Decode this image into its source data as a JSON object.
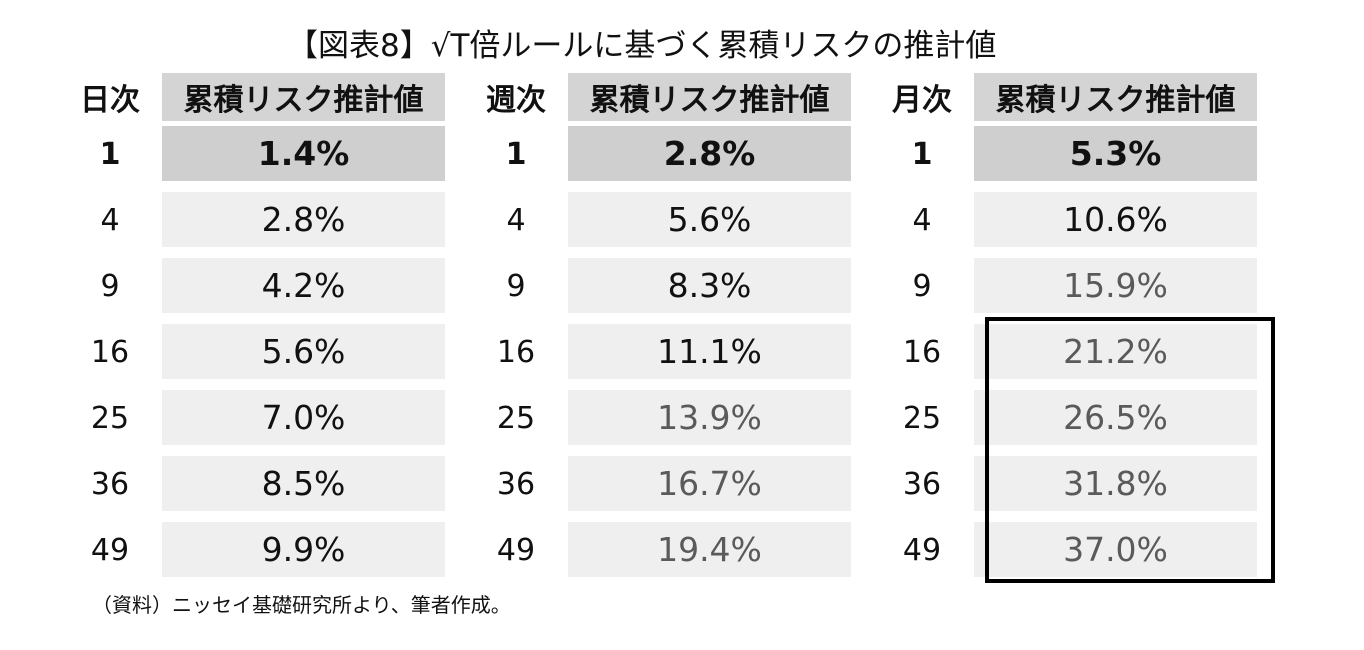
{
  "title": "【図表8】√T倍ルールに基づく累積リスクの推計値",
  "source": "（資料）ニッセイ基礎研究所より、筆者作成。",
  "chart_data": {
    "type": "table",
    "tables": [
      {
        "period_header": "日次",
        "value_header": "累積リスク推計値",
        "periods": [
          "1",
          "4",
          "9",
          "16",
          "25",
          "36",
          "49"
        ],
        "values": [
          "1.4%",
          "2.8%",
          "4.2%",
          "5.6%",
          "7.0%",
          "8.5%",
          "9.9%"
        ]
      },
      {
        "period_header": "週次",
        "value_header": "累積リスク推計値",
        "periods": [
          "1",
          "4",
          "9",
          "16",
          "25",
          "36",
          "49"
        ],
        "values": [
          "2.8%",
          "5.6%",
          "8.3%",
          "11.1%",
          "13.9%",
          "16.7%",
          "19.4%"
        ]
      },
      {
        "period_header": "月次",
        "value_header": "累積リスク推計値",
        "periods": [
          "1",
          "4",
          "9",
          "16",
          "25",
          "36",
          "49"
        ],
        "values": [
          "5.3%",
          "10.6%",
          "15.9%",
          "21.2%",
          "26.5%",
          "31.8%",
          "37.0%"
        ]
      }
    ]
  }
}
